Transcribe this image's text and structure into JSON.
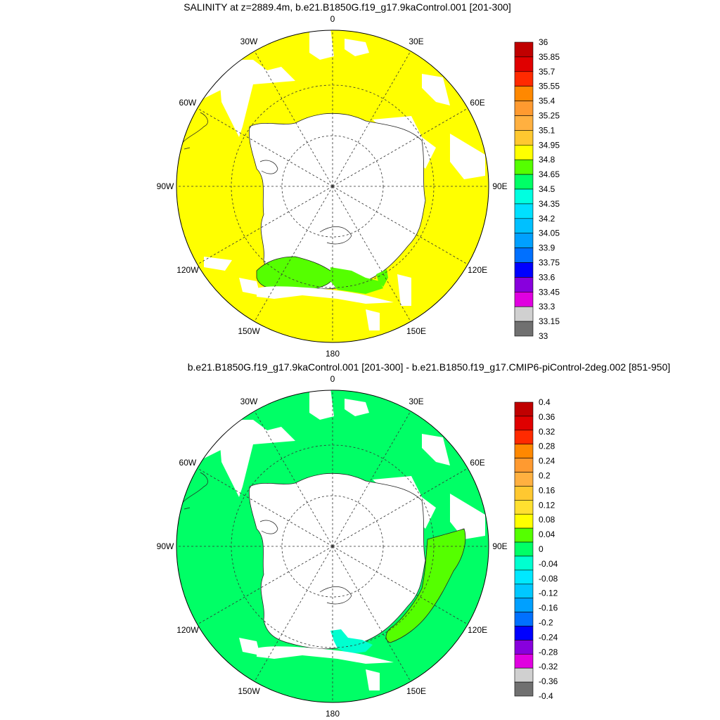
{
  "panels": [
    {
      "title": "SALINITY at z=2889.4m, b.e21.B1850G.f19_g17.9kaControl.001 [201-300]",
      "lon_labels": [
        "0",
        "30E",
        "60E",
        "90E",
        "120E",
        "150E",
        "180",
        "150W",
        "120W",
        "90W",
        "60W",
        "30W"
      ],
      "colorbar": {
        "labels": [
          "36",
          "35.85",
          "35.7",
          "35.55",
          "35.4",
          "35.25",
          "35.1",
          "34.95",
          "34.8",
          "34.65",
          "34.5",
          "34.35",
          "34.2",
          "34.05",
          "33.9",
          "33.75",
          "33.6",
          "33.45",
          "33.3",
          "33.15",
          "33"
        ],
        "colors": [
          "#c00000",
          "#e00000",
          "#ff2a00",
          "#ff8800",
          "#ff9a30",
          "#ffb040",
          "#ffc830",
          "#ffff00",
          "#55ff00",
          "#00ff66",
          "#00ffe0",
          "#00e0ff",
          "#00c0ff",
          "#00a0ff",
          "#0070ff",
          "#0000ff",
          "#8800dd",
          "#e000e0",
          "#d0d0d0",
          "#707070"
        ]
      },
      "field_color": "#ffff00",
      "anomaly_color": "#55ff00"
    },
    {
      "title": "b.e21.B1850G.f19_g17.9kaControl.001 [201-300] - b.e21.B1850.f19_g17.CMIP6-piControl-2deg.002 [851-950]",
      "lon_labels": [
        "0",
        "30E",
        "60E",
        "90E",
        "120E",
        "150E",
        "180",
        "150W",
        "120W",
        "90W",
        "60W",
        "30W"
      ],
      "colorbar": {
        "labels": [
          "0.4",
          "0.36",
          "0.32",
          "0.28",
          "0.24",
          "0.2",
          "0.16",
          "0.12",
          "0.08",
          "0.04",
          "0",
          "-0.04",
          "-0.08",
          "-0.12",
          "-0.16",
          "-0.2",
          "-0.24",
          "-0.28",
          "-0.32",
          "-0.36",
          "-0.4"
        ],
        "colors": [
          "#c00000",
          "#e00000",
          "#ff2a00",
          "#ff8800",
          "#ff9a30",
          "#ffb040",
          "#ffc830",
          "#ffe030",
          "#ffff00",
          "#55ff00",
          "#00ff66",
          "#00ffd0",
          "#00e8ff",
          "#00c8ff",
          "#00a0ff",
          "#0070ff",
          "#0000ff",
          "#8800dd",
          "#e000e0",
          "#d0d0d0",
          "#707070"
        ]
      },
      "field_color": "#00ff66",
      "anomaly_color": "#55ff00",
      "anomaly2_color": "#00ffd0"
    }
  ]
}
